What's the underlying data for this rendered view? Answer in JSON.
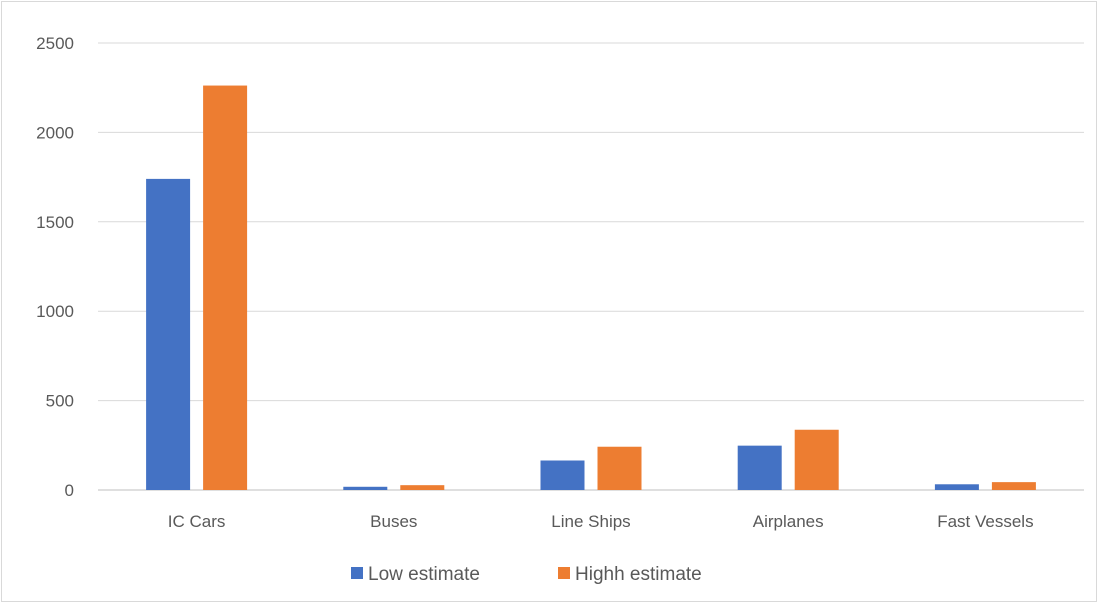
{
  "chart_data": {
    "type": "bar",
    "title": "",
    "xlabel": "",
    "ylabel": "",
    "categories": [
      "IC Cars",
      "Buses",
      "Line Ships",
      "Airplanes",
      "Fast Vessels"
    ],
    "series": [
      {
        "name": "Low estimate",
        "color": "#4472c4",
        "values": [
          1740,
          18,
          165,
          248,
          32
        ]
      },
      {
        "name": "Highh estimate",
        "color": "#ed7d31",
        "values": [
          2262,
          27,
          242,
          337,
          44
        ]
      }
    ],
    "ylim": [
      0,
      2500
    ],
    "yticks": [
      "0",
      "500",
      "1000",
      "1500",
      "2000",
      "2500"
    ],
    "grid": true,
    "legend_position": "bottom"
  }
}
